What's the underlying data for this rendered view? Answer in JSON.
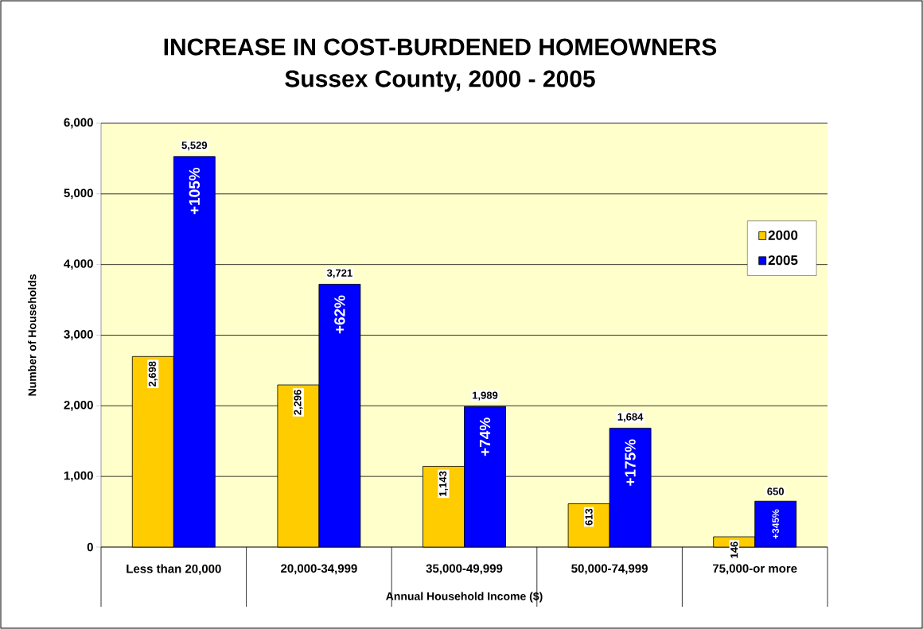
{
  "chart_data": {
    "type": "bar",
    "title": "INCREASE IN COST-BURDENED HOMEOWNERS",
    "subtitle": "Sussex County, 2000 - 2005",
    "xlabel": "Annual Household Income ($)",
    "ylabel": "Number of Households",
    "categories": [
      "Less than 20,000",
      "20,000-34,999",
      "35,000-49,999",
      "50,000-74,999",
      "75,000-or more"
    ],
    "series": [
      {
        "name": "2000",
        "color": "#ffcc00",
        "values": [
          2698,
          2296,
          1143,
          613,
          146
        ],
        "value_labels": [
          "2,698",
          "2,296",
          "1,143",
          "613",
          "146"
        ]
      },
      {
        "name": "2005",
        "color": "#0000ff",
        "values": [
          5529,
          3721,
          1989,
          1684,
          650
        ],
        "value_labels": [
          "5,529",
          "3,721",
          "1,989",
          "1,684",
          "650"
        ]
      }
    ],
    "ylim": [
      0,
      6000
    ],
    "yticks": [
      {
        "value": 0,
        "label": "0"
      },
      {
        "value": 1000,
        "label": "1,000"
      },
      {
        "value": 2000,
        "label": "2,000"
      },
      {
        "value": 3000,
        "label": "3,000"
      },
      {
        "value": 4000,
        "label": "4,000"
      },
      {
        "value": 5000,
        "label": "5,000"
      },
      {
        "value": 6000,
        "label": "6,000"
      }
    ],
    "grid": "y",
    "legend": "right",
    "annotations": [
      {
        "text": "+105%",
        "x": "Less than 20,000",
        "y": 5529
      },
      {
        "text": "+62%",
        "x": "20,000-34,999",
        "y": 3721
      },
      {
        "text": "+74%",
        "x": "35,000-49,999",
        "y": 1989
      },
      {
        "text": "+175%",
        "x": "50,000-74,999",
        "y": 1684
      },
      {
        "text": "+345%",
        "x": "75,000-or more",
        "y": 650
      }
    ]
  }
}
